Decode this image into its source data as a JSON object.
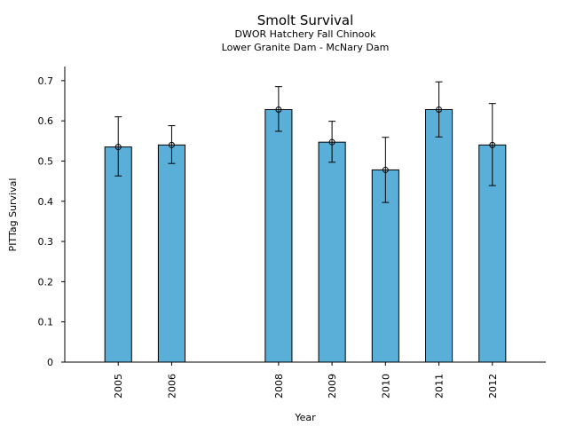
{
  "chart_data": {
    "type": "bar",
    "title": "Smolt Survival",
    "subtitle": [
      "DWOR Hatchery Fall Chinook",
      "Lower Granite Dam - McNary Dam"
    ],
    "xlabel": "Year",
    "ylabel": "PITTag Survival",
    "ylim": [
      0,
      0.735
    ],
    "ytick_labels": [
      "0",
      "0.1",
      "0.2",
      "0.3",
      "0.4",
      "0.5",
      "0.6",
      "0.7"
    ],
    "categories": [
      "2005",
      "2006",
      "2008",
      "2009",
      "2010",
      "2011",
      "2012"
    ],
    "x_positions": [
      2005,
      2006,
      2008,
      2009,
      2010,
      2011,
      2012
    ],
    "xlim": [
      2004,
      2013
    ],
    "values": [
      0.535,
      0.54,
      0.628,
      0.547,
      0.478,
      0.628,
      0.54
    ],
    "error_lower": [
      0.463,
      0.494,
      0.574,
      0.497,
      0.397,
      0.56,
      0.439
    ],
    "error_upper": [
      0.61,
      0.588,
      0.685,
      0.599,
      0.559,
      0.697,
      0.643
    ],
    "bar_color": "#5aafd8",
    "edge_color": "#000000",
    "grid": false,
    "legend": "none"
  }
}
